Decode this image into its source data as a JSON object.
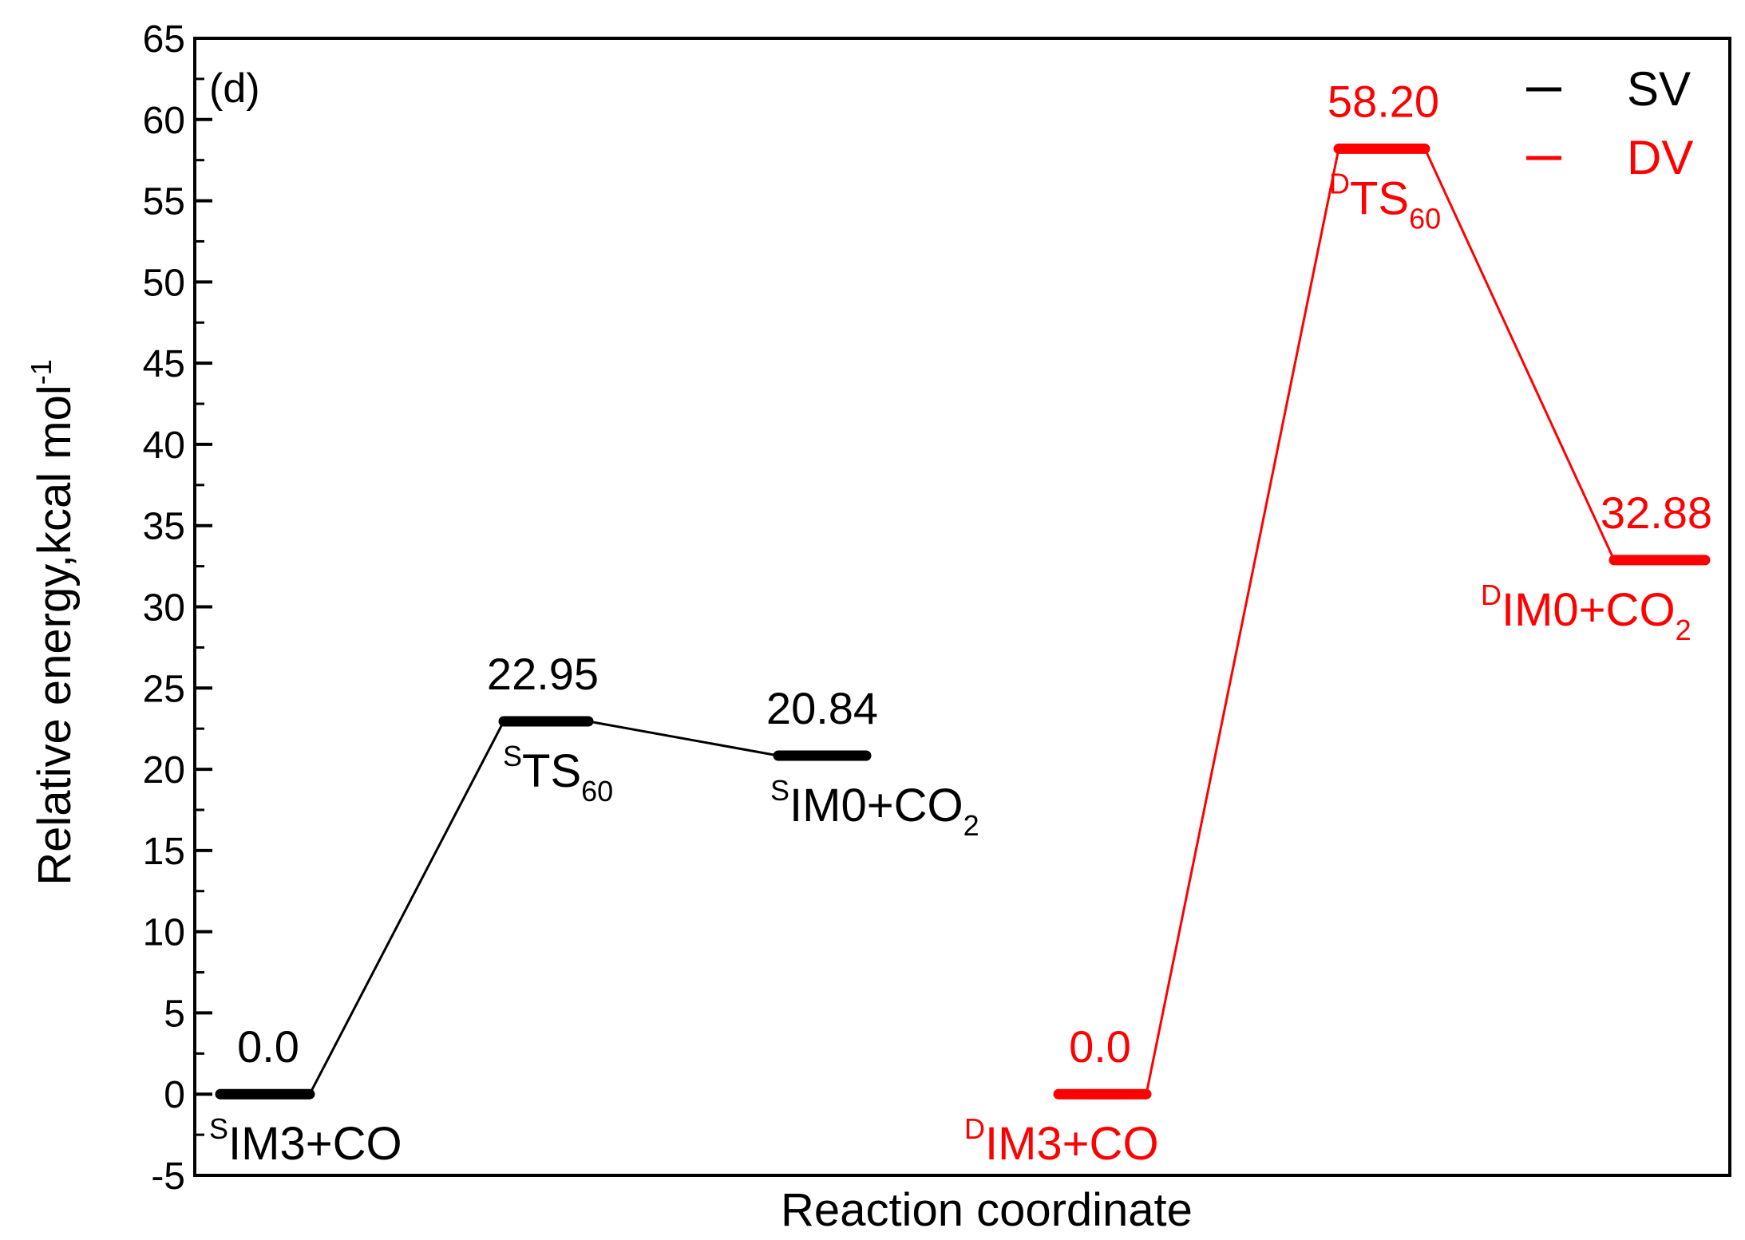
{
  "chart_data": {
    "type": "line",
    "panel_label": "(d)",
    "xlabel": "Reaction coordinate",
    "ylabel": "Relative energy,kcal mol",
    "ylabel_sup": "-1",
    "ylim": [
      -5,
      65
    ],
    "ytick_step": 5,
    "yticks": [
      "-5",
      "0",
      "5",
      "10",
      "15",
      "20",
      "25",
      "30",
      "35",
      "40",
      "45",
      "50",
      "55",
      "60",
      "65"
    ],
    "legend_position": "top-right",
    "series": [
      {
        "name": "SV",
        "color": "#000000",
        "points": [
          {
            "value": 0.0,
            "value_label": "0.0",
            "sup": "S",
            "species": "IM3+CO",
            "sub": ""
          },
          {
            "value": 22.95,
            "value_label": "22.95",
            "sup": "S",
            "species": "TS",
            "sub": "60"
          },
          {
            "value": 20.84,
            "value_label": "20.84",
            "sup": "S",
            "species": "IM0+CO",
            "sub": "2"
          }
        ]
      },
      {
        "name": "DV",
        "color": "#ff0000",
        "points": [
          {
            "value": 0.0,
            "value_label": "0.0",
            "sup": "D",
            "species": "IM3+CO",
            "sub": ""
          },
          {
            "value": 58.2,
            "value_label": "58.20",
            "sup": "D",
            "species": "TS",
            "sub": "60"
          },
          {
            "value": 32.88,
            "value_label": "32.88",
            "sup": "D",
            "species": "IM0+CO",
            "sub": "2"
          }
        ]
      }
    ]
  }
}
